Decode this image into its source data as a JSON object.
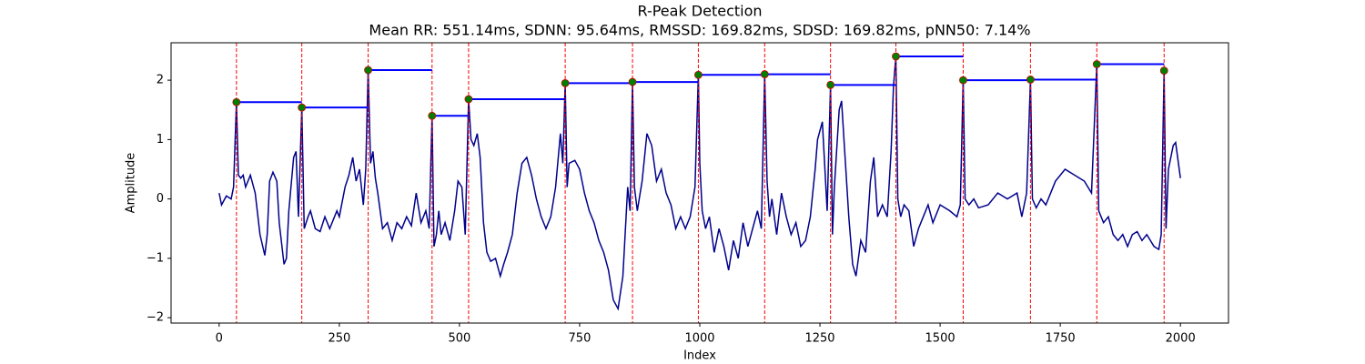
{
  "chart_data": {
    "type": "line",
    "title": "R-Peak Detection",
    "subtitle": "Mean RR: 551.14ms, SDNN: 95.64ms, RMSSD: 169.82ms, SDSD: 169.82ms, pNN50: 7.14%",
    "x_label": "Index",
    "y_label": "Amplitude",
    "xlim": [
      -100,
      2100
    ],
    "ylim": [
      -2.09,
      2.63
    ],
    "xticks": [
      0,
      250,
      500,
      750,
      1000,
      1250,
      1500,
      1750,
      2000
    ],
    "yticks": [
      {
        "value": -2,
        "label": "−2"
      },
      {
        "value": -1,
        "label": "−1"
      },
      0,
      1,
      2
    ],
    "signal": {
      "color": "#00008b",
      "x": [
        0,
        5,
        15,
        25,
        30,
        36,
        40,
        45,
        50,
        55,
        65,
        75,
        85,
        95,
        100,
        105,
        112,
        120,
        125,
        135,
        140,
        145,
        155,
        160,
        165,
        172,
        177,
        185,
        190,
        200,
        210,
        220,
        230,
        245,
        250,
        262,
        270,
        278,
        285,
        292,
        300,
        305,
        310,
        315,
        320,
        325,
        330,
        340,
        350,
        360,
        370,
        380,
        390,
        400,
        410,
        420,
        430,
        437,
        443,
        447,
        452,
        457,
        462,
        470,
        480,
        490,
        497,
        505,
        512,
        519,
        524,
        530,
        537,
        543,
        550,
        557,
        565,
        575,
        585,
        592,
        600,
        610,
        620,
        630,
        640,
        650,
        660,
        670,
        680,
        690,
        700,
        710,
        715,
        720,
        724,
        728,
        740,
        750,
        760,
        770,
        780,
        790,
        800,
        810,
        820,
        830,
        840,
        850,
        855,
        860,
        864,
        870,
        880,
        890,
        900,
        910,
        920,
        930,
        940,
        950,
        960,
        970,
        980,
        990,
        997,
        1000,
        1005,
        1012,
        1020,
        1030,
        1040,
        1050,
        1060,
        1070,
        1080,
        1090,
        1100,
        1110,
        1120,
        1128,
        1135,
        1140,
        1145,
        1150,
        1160,
        1170,
        1180,
        1190,
        1200,
        1210,
        1220,
        1230,
        1240,
        1245,
        1255,
        1265,
        1272,
        1276,
        1280,
        1290,
        1295,
        1300,
        1310,
        1318,
        1325,
        1335,
        1345,
        1355,
        1362,
        1370,
        1380,
        1390,
        1398,
        1403,
        1408,
        1412,
        1418,
        1425,
        1435,
        1445,
        1455,
        1465,
        1475,
        1485,
        1500,
        1520,
        1535,
        1542,
        1548,
        1552,
        1560,
        1570,
        1580,
        1600,
        1620,
        1640,
        1660,
        1670,
        1680,
        1688,
        1692,
        1700,
        1710,
        1720,
        1740,
        1760,
        1780,
        1800,
        1815,
        1826,
        1830,
        1840,
        1850,
        1860,
        1870,
        1880,
        1890,
        1900,
        1910,
        1920,
        1930,
        1945,
        1955,
        1960,
        1966,
        1970,
        1975,
        1985,
        1990,
        2000
      ],
      "values": [
        0.1,
        -0.1,
        0.05,
        0,
        0.2,
        1.63,
        0.4,
        0.35,
        0.4,
        0.2,
        0.4,
        0.1,
        -0.6,
        -0.95,
        -0.6,
        0.3,
        0.45,
        0.3,
        -0.4,
        -1.1,
        -1.0,
        -0.2,
        0.7,
        0.8,
        -0.3,
        1.54,
        -0.5,
        -0.3,
        -0.2,
        -0.5,
        -0.55,
        -0.3,
        -0.5,
        -0.2,
        -0.3,
        0.2,
        0.4,
        0.7,
        0.3,
        0.5,
        -0.1,
        0.5,
        2.17,
        0.6,
        0.8,
        0.35,
        0.1,
        -0.5,
        -0.4,
        -0.7,
        -0.4,
        -0.5,
        -0.3,
        -0.45,
        0.1,
        -0.4,
        -0.2,
        -0.5,
        1.4,
        -0.8,
        -0.6,
        -0.2,
        -0.6,
        -0.4,
        -0.7,
        -0.2,
        0.3,
        0.2,
        -0.6,
        1.68,
        1.0,
        0.9,
        1.1,
        0.7,
        -0.4,
        -0.9,
        -1.05,
        -1.0,
        -1.3,
        -1.1,
        -0.9,
        -0.6,
        0.1,
        0.6,
        0.7,
        0.4,
        0.0,
        -0.3,
        -0.5,
        -0.3,
        0.2,
        1.1,
        0.6,
        1.95,
        0.2,
        0.6,
        0.65,
        0.5,
        0.1,
        -0.2,
        -0.4,
        -0.7,
        -0.9,
        -1.2,
        -1.7,
        -1.85,
        -1.3,
        0.2,
        -0.2,
        1.97,
        0.2,
        -0.2,
        0.3,
        1.1,
        0.9,
        0.3,
        0.5,
        0.1,
        -0.1,
        -0.5,
        -0.3,
        -0.5,
        -0.3,
        0.2,
        2.09,
        0.6,
        -0.2,
        -0.5,
        -0.3,
        -0.9,
        -0.5,
        -0.8,
        -1.2,
        -0.7,
        -1.0,
        -0.4,
        -0.8,
        -0.5,
        -0.2,
        -0.5,
        2.1,
        0.3,
        -0.3,
        0.0,
        -0.6,
        0.1,
        -0.3,
        -0.6,
        -0.4,
        -0.8,
        -0.7,
        -0.3,
        0.5,
        1.0,
        1.3,
        -0.2,
        1.92,
        -0.6,
        0.2,
        1.5,
        1.65,
        1.0,
        -0.3,
        -1.1,
        -1.3,
        -0.7,
        -0.9,
        0.3,
        0.7,
        -0.3,
        -0.1,
        -0.3,
        0.8,
        1.9,
        2.4,
        0.0,
        -0.3,
        -0.1,
        -0.2,
        -0.8,
        -0.5,
        -0.3,
        -0.1,
        -0.4,
        -0.1,
        -0.2,
        -0.3,
        -0.1,
        2.0,
        0.0,
        -0.1,
        0.0,
        -0.15,
        -0.1,
        0.1,
        0.0,
        0.1,
        -0.3,
        0.1,
        2.01,
        0.0,
        -0.15,
        0.0,
        -0.1,
        0.3,
        0.5,
        0.4,
        0.3,
        0.1,
        2.27,
        -0.2,
        -0.4,
        -0.3,
        -0.6,
        -0.7,
        -0.6,
        -0.8,
        -0.6,
        -0.55,
        -0.7,
        -0.6,
        -0.8,
        -0.85,
        -0.6,
        2.16,
        -0.5,
        0.5,
        0.9,
        0.95,
        0.35
      ]
    },
    "peaks": {
      "color": "#008000",
      "edge_color": "#cc0000",
      "marker_line_color": "#ff0000",
      "interval_color": "#0000ff",
      "x": [
        36,
        172,
        310,
        443,
        519,
        720,
        860,
        997,
        1135,
        1272,
        1408,
        1548,
        1688,
        1826,
        1966
      ],
      "values": [
        1.63,
        1.54,
        2.17,
        1.4,
        1.68,
        1.95,
        1.97,
        2.09,
        2.1,
        1.92,
        2.4,
        2.0,
        2.01,
        2.27,
        2.16
      ]
    }
  }
}
